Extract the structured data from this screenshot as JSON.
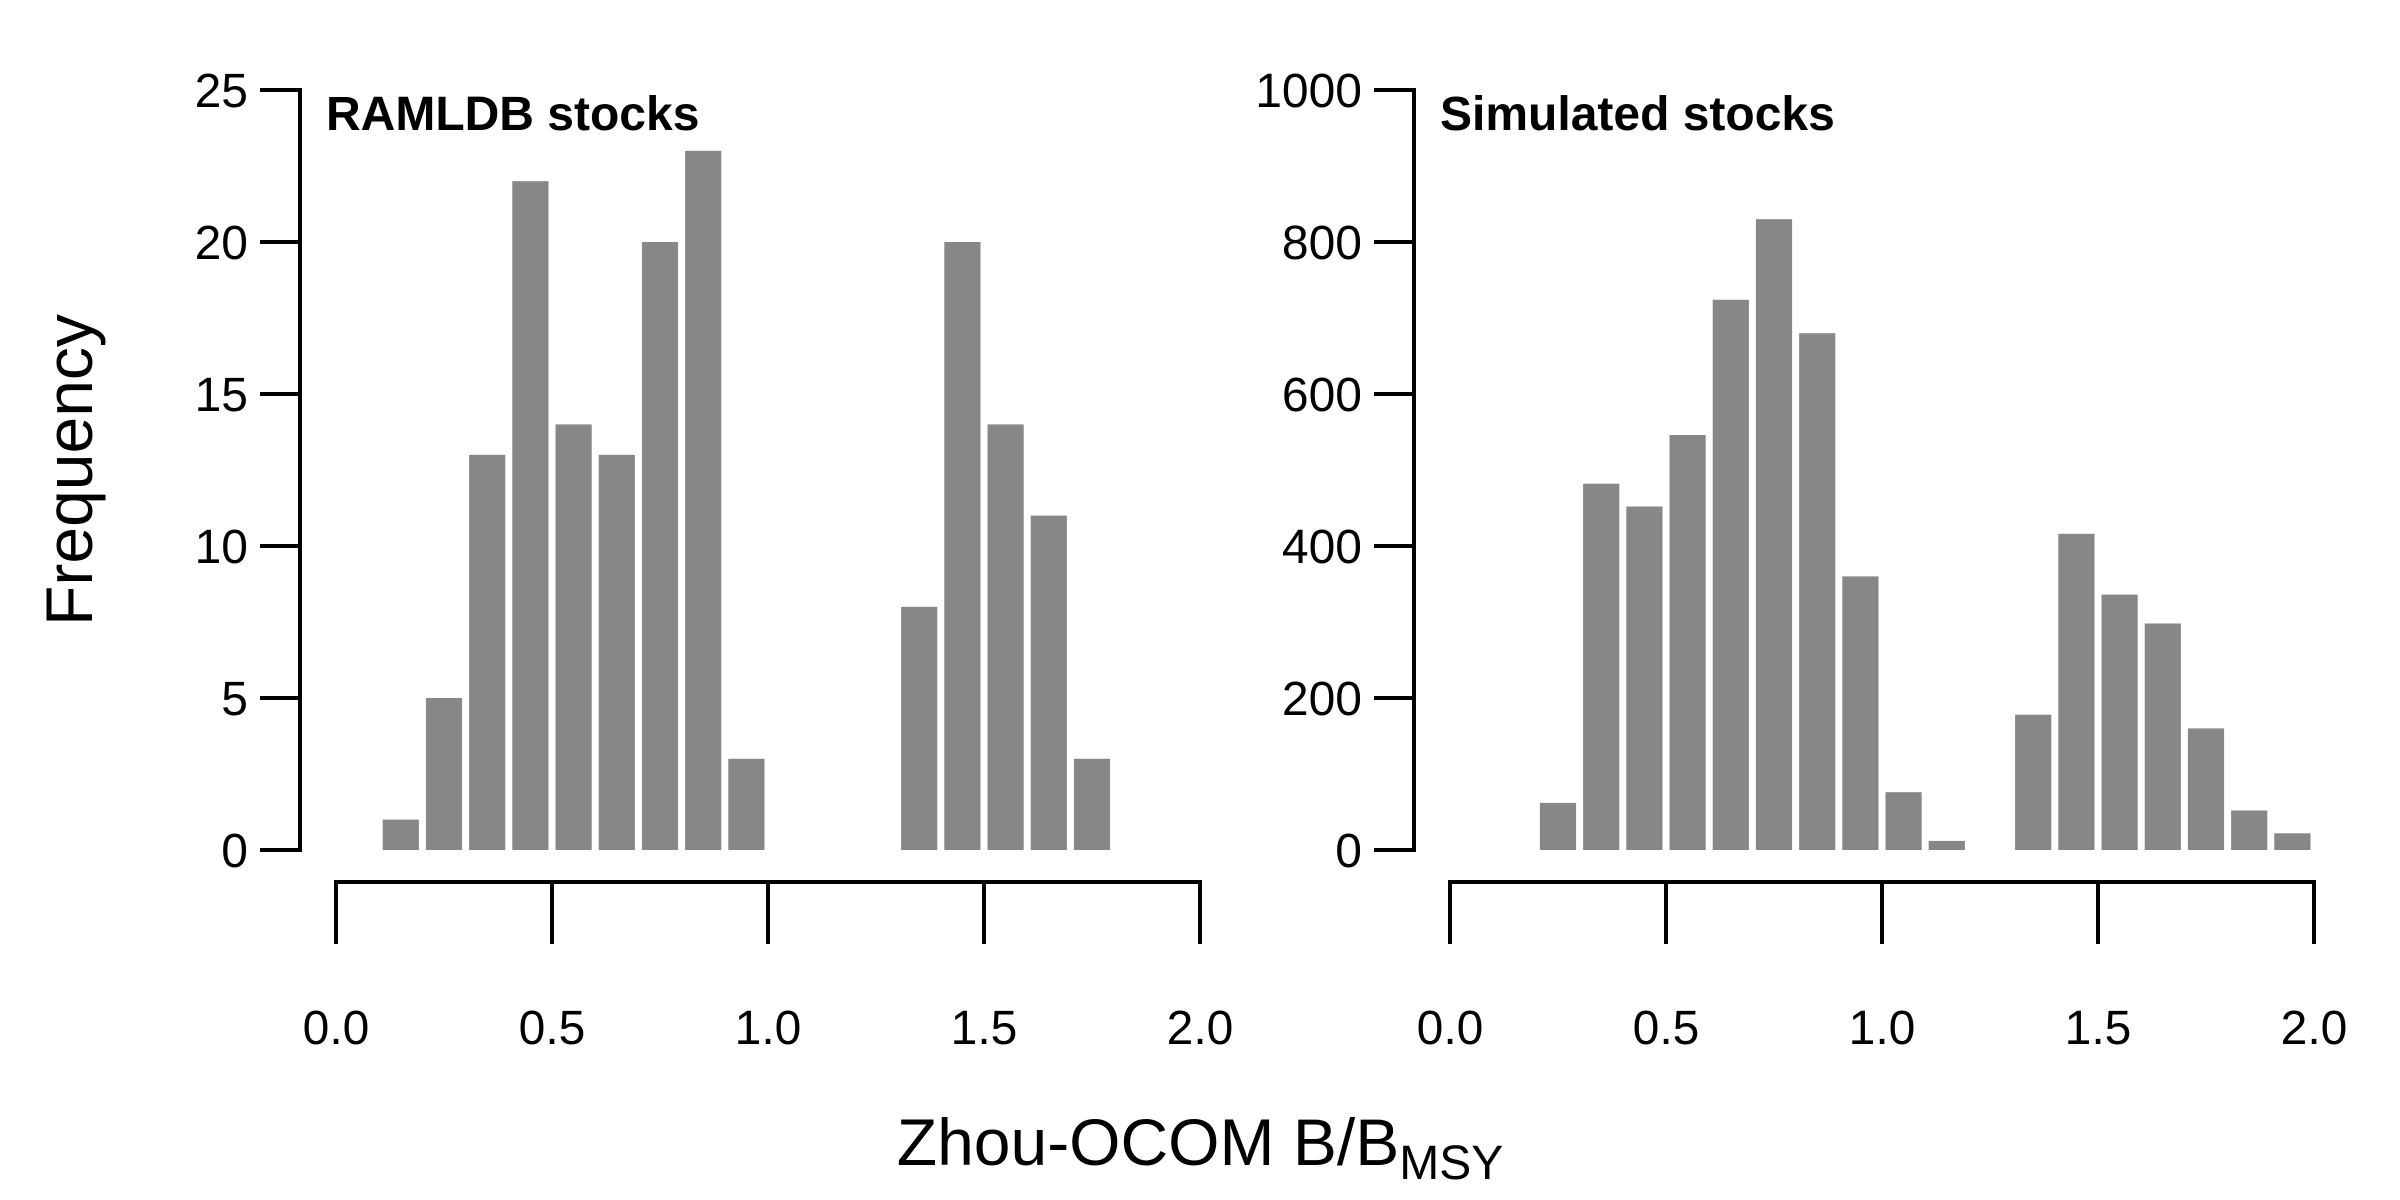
{
  "colors": {
    "bar": "#878787",
    "axis": "#000000",
    "background": "#ffffff"
  },
  "ylabel": "Frequency",
  "xlabel": {
    "main": "Zhou-OCOM B/B",
    "subscript": "MSY"
  },
  "chart_data": [
    {
      "type": "bar",
      "title": "RAMLDB stocks",
      "xlabel": "Zhou-OCOM B/BMSY",
      "ylabel": "Frequency",
      "xlim": [
        0.0,
        2.0
      ],
      "ylim": [
        0,
        25
      ],
      "bin_width": 0.1,
      "x_ticks": [
        "0.0",
        "0.5",
        "1.0",
        "1.5",
        "2.0"
      ],
      "y_ticks": [
        "0",
        "5",
        "10",
        "15",
        "20",
        "25"
      ],
      "bins": [
        {
          "x0": 0.1,
          "x1": 0.2,
          "value": 1
        },
        {
          "x0": 0.2,
          "x1": 0.3,
          "value": 5
        },
        {
          "x0": 0.3,
          "x1": 0.4,
          "value": 13
        },
        {
          "x0": 0.4,
          "x1": 0.5,
          "value": 22
        },
        {
          "x0": 0.5,
          "x1": 0.6,
          "value": 14
        },
        {
          "x0": 0.6,
          "x1": 0.7,
          "value": 13
        },
        {
          "x0": 0.7,
          "x1": 0.8,
          "value": 20
        },
        {
          "x0": 0.8,
          "x1": 0.9,
          "value": 23
        },
        {
          "x0": 0.9,
          "x1": 1.0,
          "value": 3
        },
        {
          "x0": 1.3,
          "x1": 1.4,
          "value": 8
        },
        {
          "x0": 1.4,
          "x1": 1.5,
          "value": 20
        },
        {
          "x0": 1.5,
          "x1": 1.6,
          "value": 14
        },
        {
          "x0": 1.6,
          "x1": 1.7,
          "value": 11
        },
        {
          "x0": 1.7,
          "x1": 1.8,
          "value": 3
        }
      ]
    },
    {
      "type": "bar",
      "title": "Simulated stocks",
      "xlabel": "Zhou-OCOM B/BMSY",
      "ylabel": "Frequency",
      "xlim": [
        0.0,
        2.0
      ],
      "ylim": [
        0,
        1000
      ],
      "bin_width": 0.1,
      "x_ticks": [
        "0.0",
        "0.5",
        "1.0",
        "1.5",
        "2.0"
      ],
      "y_ticks": [
        "0",
        "200",
        "400",
        "600",
        "800",
        "1000"
      ],
      "bins": [
        {
          "x0": 0.2,
          "x1": 0.3,
          "value": 62
        },
        {
          "x0": 0.3,
          "x1": 0.4,
          "value": 482
        },
        {
          "x0": 0.4,
          "x1": 0.5,
          "value": 452
        },
        {
          "x0": 0.5,
          "x1": 0.6,
          "value": 546
        },
        {
          "x0": 0.6,
          "x1": 0.7,
          "value": 724
        },
        {
          "x0": 0.7,
          "x1": 0.8,
          "value": 830
        },
        {
          "x0": 0.8,
          "x1": 0.9,
          "value": 680
        },
        {
          "x0": 0.9,
          "x1": 1.0,
          "value": 360
        },
        {
          "x0": 1.0,
          "x1": 1.1,
          "value": 76
        },
        {
          "x0": 1.1,
          "x1": 1.2,
          "value": 12
        },
        {
          "x0": 1.3,
          "x1": 1.4,
          "value": 178
        },
        {
          "x0": 1.4,
          "x1": 1.5,
          "value": 416
        },
        {
          "x0": 1.5,
          "x1": 1.6,
          "value": 336
        },
        {
          "x0": 1.6,
          "x1": 1.7,
          "value": 298
        },
        {
          "x0": 1.7,
          "x1": 1.8,
          "value": 160
        },
        {
          "x0": 1.8,
          "x1": 1.9,
          "value": 52
        },
        {
          "x0": 1.9,
          "x1": 2.0,
          "value": 22
        }
      ]
    }
  ]
}
